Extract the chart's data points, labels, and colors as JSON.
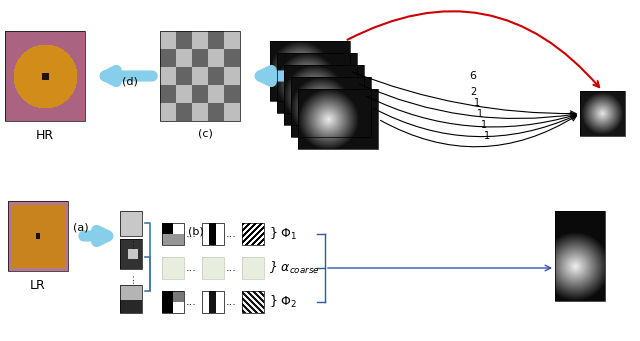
{
  "fig_width": 6.4,
  "fig_height": 3.41,
  "dpi": 100,
  "bg_color": "#ffffff",
  "arrow_color_blue": "#87CEEB",
  "arrow_color_red": "#CC0000",
  "arrow_color_dark": "#333333",
  "label_LR": "LR",
  "label_HR": "HR",
  "label_a": "(a)",
  "label_b": "(b)",
  "label_c": "(c)",
  "label_d": "(d)",
  "label_phi1": "$\\Phi_1$",
  "label_phi2": "$\\Phi_2$",
  "label_alpha": "$\\alpha_{coarse}$",
  "label_6": "6",
  "label_2": "2",
  "label_1": "1",
  "phi1_color": "#000000",
  "alpha_color_fill": "#e8eedd",
  "alpha_color_edge": "#c8cdb8"
}
